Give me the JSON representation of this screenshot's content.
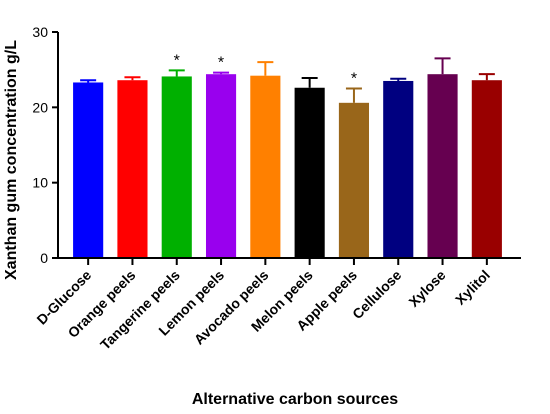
{
  "chart_data": {
    "type": "bar",
    "categories": [
      "D-Glucose",
      "Orange peels",
      "Tangerine peels",
      "Lemon peels",
      "Avocado peels",
      "Melon peels",
      "Apple peels",
      "Cellulose",
      "Xylose",
      "Xylitol"
    ],
    "values": [
      23.3,
      23.6,
      24.1,
      24.4,
      24.2,
      22.6,
      20.6,
      23.5,
      24.4,
      23.6
    ],
    "errors": [
      0.3,
      0.4,
      0.8,
      0.2,
      1.8,
      1.3,
      1.9,
      0.3,
      2.1,
      0.8
    ],
    "significance": [
      "",
      "",
      "*",
      "*",
      "",
      "",
      "*",
      "",
      "",
      ""
    ],
    "colors": [
      "#0000ff",
      "#ff0000",
      "#00b000",
      "#9900ee",
      "#ff8000",
      "#000000",
      "#99661a",
      "#000080",
      "#660050",
      "#990000"
    ],
    "xlabel": "Alternative carbon sources",
    "ylabel": "Xanthan gum concentration g/L",
    "ylim": [
      0,
      30
    ],
    "yticks": [
      "0",
      "10",
      "20",
      "30"
    ],
    "grid": false,
    "legend": "none"
  }
}
